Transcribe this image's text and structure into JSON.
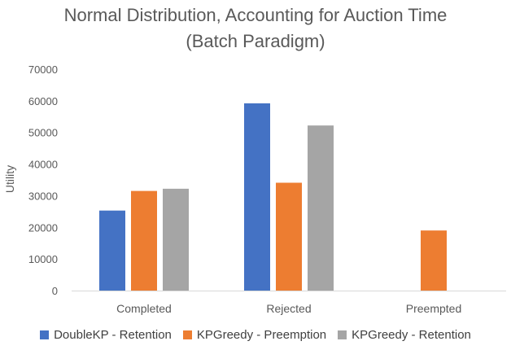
{
  "chart_data": {
    "type": "bar",
    "title": "Normal Distribution, Accounting for Auction Time",
    "subtitle": "(Batch Paradigm)",
    "xlabel": "",
    "ylabel": "Utility",
    "categories": [
      "Completed",
      "Rejected",
      "Preempted"
    ],
    "series": [
      {
        "name": "DoubleKP - Retention",
        "color": "#4472C4",
        "values": [
          25300,
          59200,
          0
        ]
      },
      {
        "name": "KPGreedy - Preemption",
        "color": "#ED7D31",
        "values": [
          31500,
          34100,
          19000
        ]
      },
      {
        "name": "KPGreedy - Retention",
        "color": "#A5A5A5",
        "values": [
          32200,
          52200,
          0
        ]
      }
    ],
    "ylim": [
      0,
      70000
    ],
    "yticks": [
      0,
      10000,
      20000,
      30000,
      40000,
      50000,
      60000,
      70000
    ],
    "grid": false,
    "legend_position": "bottom"
  }
}
